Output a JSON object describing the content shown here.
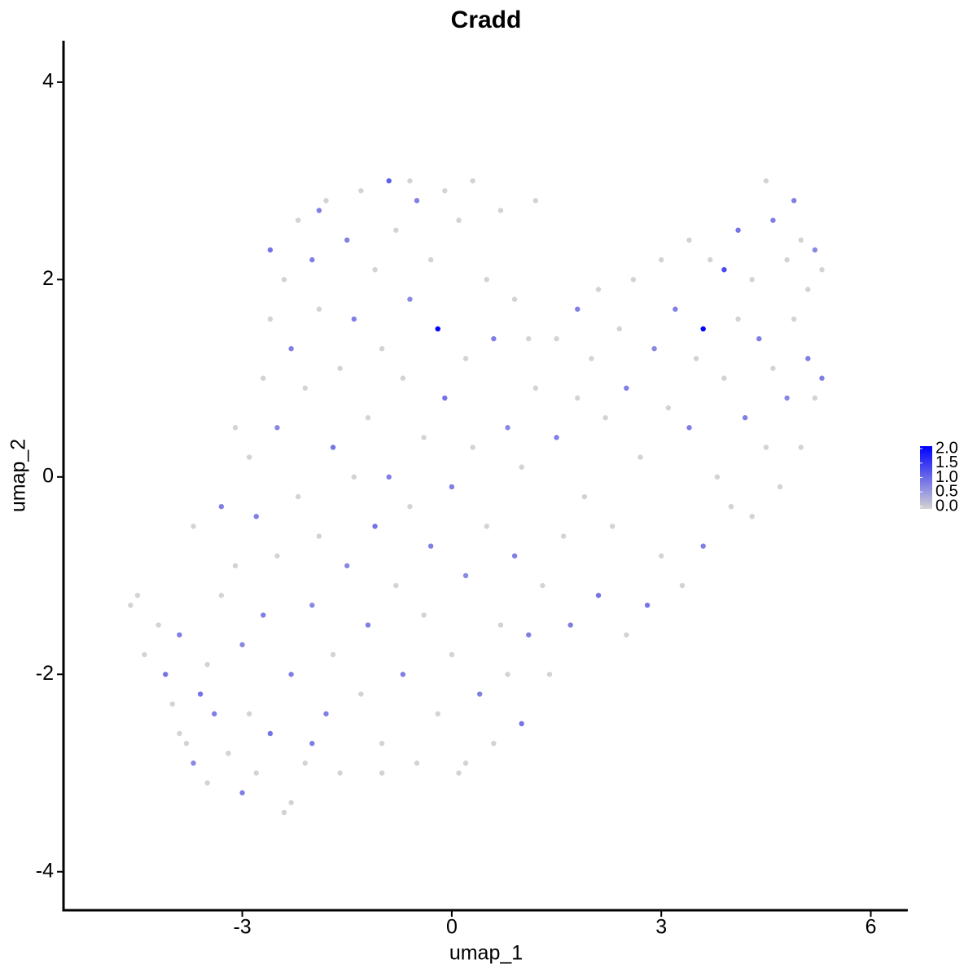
{
  "chart_data": {
    "type": "scatter",
    "title": "Cradd",
    "x_label": "umap_1",
    "y_label": "umap_2",
    "xlim": [
      -5.56,
      6.53
    ],
    "ylim": [
      -4.39,
      4.42
    ],
    "xticks": [
      -3,
      0,
      3,
      6
    ],
    "yticks": [
      -4,
      -2,
      0,
      2,
      4
    ],
    "color_low": "#d3d3d3",
    "color_high": "#0000ff",
    "clim": [
      0,
      2
    ],
    "cticks": [
      {
        "value": 0,
        "label": "0.0"
      },
      0.5,
      {
        "value": 1,
        "label": "1.0"
      },
      1.5,
      {
        "value": 2,
        "label": "2.0"
      }
    ],
    "points": [
      [
        -4.6,
        -1.3,
        0
      ],
      [
        -4.5,
        -1.2,
        0
      ],
      [
        -4.4,
        -1.8,
        0
      ],
      [
        -4.2,
        -1.5,
        0
      ],
      [
        -4.1,
        -2.0,
        0.9
      ],
      [
        -4.0,
        -2.3,
        0
      ],
      [
        -3.9,
        -1.6,
        0.8
      ],
      [
        -3.8,
        -2.7,
        0
      ],
      [
        -3.7,
        -2.9,
        0.7
      ],
      [
        -3.6,
        -2.2,
        0.9
      ],
      [
        -3.5,
        -1.9,
        0
      ],
      [
        -3.5,
        -3.1,
        0
      ],
      [
        -3.4,
        -2.4,
        0.8
      ],
      [
        -3.3,
        -1.2,
        0
      ],
      [
        -3.3,
        -0.3,
        0.8
      ],
      [
        -3.2,
        -2.8,
        0
      ],
      [
        -3.1,
        -0.9,
        0
      ],
      [
        -3.0,
        -3.2,
        0.8
      ],
      [
        -3.0,
        -1.7,
        0.7
      ],
      [
        -2.9,
        -2.4,
        0
      ],
      [
        -2.9,
        0.2,
        0
      ],
      [
        -2.8,
        -0.4,
        0.8
      ],
      [
        -2.8,
        -3.0,
        0
      ],
      [
        -2.7,
        1.0,
        0
      ],
      [
        -2.7,
        -1.4,
        0.8
      ],
      [
        -2.6,
        -2.6,
        0.9
      ],
      [
        -2.6,
        1.6,
        0
      ],
      [
        -2.5,
        -0.8,
        0
      ],
      [
        -2.5,
        0.5,
        0.7
      ],
      [
        -2.4,
        -3.4,
        0
      ],
      [
        -2.4,
        2.0,
        0
      ],
      [
        -2.3,
        -2.0,
        0.8
      ],
      [
        -2.3,
        1.3,
        0.8
      ],
      [
        -2.2,
        -0.2,
        0
      ],
      [
        -2.2,
        2.6,
        0
      ],
      [
        -2.1,
        -2.9,
        0
      ],
      [
        -2.1,
        0.9,
        0
      ],
      [
        -2.0,
        -1.3,
        0.7
      ],
      [
        -2.0,
        2.2,
        0.8
      ],
      [
        -1.9,
        -0.6,
        0
      ],
      [
        -1.9,
        1.7,
        0
      ],
      [
        -1.8,
        -2.4,
        0.8
      ],
      [
        -1.8,
        2.8,
        0
      ],
      [
        -1.7,
        0.3,
        0.9
      ],
      [
        -1.7,
        -1.8,
        0
      ],
      [
        -1.6,
        1.1,
        0
      ],
      [
        -1.6,
        -3.0,
        0
      ],
      [
        -1.5,
        2.4,
        0.8
      ],
      [
        -1.5,
        -0.9,
        0.7
      ],
      [
        -1.4,
        0.0,
        0
      ],
      [
        -1.4,
        1.6,
        0.8
      ],
      [
        -1.3,
        -2.2,
        0
      ],
      [
        -1.3,
        2.9,
        0
      ],
      [
        -1.2,
        -1.5,
        0.8
      ],
      [
        -1.2,
        0.6,
        0
      ],
      [
        -1.1,
        2.1,
        0
      ],
      [
        -1.1,
        -0.5,
        0.9
      ],
      [
        -1.0,
        1.3,
        0
      ],
      [
        -1.0,
        -2.7,
        0
      ],
      [
        -0.9,
        3.0,
        1.1
      ],
      [
        -0.9,
        0.0,
        0.8
      ],
      [
        -0.8,
        -1.1,
        0
      ],
      [
        -0.8,
        2.5,
        0
      ],
      [
        -0.7,
        -2.0,
        0.8
      ],
      [
        -0.7,
        1.0,
        0
      ],
      [
        -0.6,
        -0.3,
        0
      ],
      [
        -0.6,
        1.8,
        0.7
      ],
      [
        -0.5,
        -2.9,
        0
      ],
      [
        -0.5,
        2.8,
        0.8
      ],
      [
        -0.4,
        0.4,
        0
      ],
      [
        -0.4,
        -1.4,
        0
      ],
      [
        -0.3,
        2.2,
        0
      ],
      [
        -0.3,
        -0.7,
        0.8
      ],
      [
        -0.2,
        1.5,
        2.0
      ],
      [
        -0.2,
        -2.4,
        0
      ],
      [
        -0.1,
        0.8,
        0.9
      ],
      [
        -0.1,
        2.9,
        0
      ],
      [
        0.0,
        -1.8,
        0
      ],
      [
        0.0,
        -0.1,
        0.8
      ],
      [
        0.1,
        2.6,
        0
      ],
      [
        0.1,
        -3.0,
        0
      ],
      [
        0.2,
        1.2,
        0
      ],
      [
        0.2,
        -1.0,
        0.7
      ],
      [
        0.3,
        3.0,
        0
      ],
      [
        0.3,
        0.3,
        0
      ],
      [
        0.4,
        -2.2,
        0.8
      ],
      [
        0.5,
        2.0,
        0
      ],
      [
        0.5,
        -0.5,
        0
      ],
      [
        0.6,
        -2.7,
        0
      ],
      [
        0.6,
        1.4,
        0.8
      ],
      [
        0.7,
        2.7,
        0
      ],
      [
        0.7,
        -1.5,
        0
      ],
      [
        0.8,
        0.5,
        0.7
      ],
      [
        0.8,
        -2.0,
        0
      ],
      [
        0.9,
        1.8,
        0
      ],
      [
        0.9,
        -0.8,
        0.8
      ],
      [
        1.0,
        -2.5,
        0.9
      ],
      [
        1.0,
        0.1,
        0
      ],
      [
        1.1,
        1.4,
        0
      ],
      [
        1.1,
        -1.6,
        0.8
      ],
      [
        1.2,
        2.8,
        0
      ],
      [
        1.2,
        0.9,
        0
      ],
      [
        1.3,
        -1.1,
        0
      ],
      [
        1.4,
        -2.0,
        0
      ],
      [
        1.5,
        0.4,
        0.8
      ],
      [
        1.5,
        1.4,
        0
      ],
      [
        1.6,
        -0.6,
        0
      ],
      [
        1.7,
        -1.5,
        0.8
      ],
      [
        1.8,
        1.7,
        0.8
      ],
      [
        1.8,
        0.8,
        0
      ],
      [
        1.9,
        -0.2,
        0
      ],
      [
        2.0,
        1.2,
        0
      ],
      [
        2.1,
        -1.2,
        0.9
      ],
      [
        2.1,
        1.9,
        0
      ],
      [
        2.2,
        0.6,
        0
      ],
      [
        2.3,
        -0.5,
        0
      ],
      [
        2.4,
        1.5,
        0
      ],
      [
        2.5,
        -1.6,
        0
      ],
      [
        2.5,
        0.9,
        0.8
      ],
      [
        2.6,
        2.0,
        0
      ],
      [
        2.7,
        0.2,
        0
      ],
      [
        2.8,
        -1.3,
        0.9
      ],
      [
        2.9,
        1.3,
        0.7
      ],
      [
        3.0,
        2.2,
        0
      ],
      [
        3.0,
        -0.8,
        0
      ],
      [
        3.1,
        0.7,
        0
      ],
      [
        3.2,
        1.7,
        0.8
      ],
      [
        3.3,
        -1.1,
        0
      ],
      [
        3.4,
        2.4,
        0
      ],
      [
        3.4,
        0.5,
        0.8
      ],
      [
        3.5,
        1.2,
        0
      ],
      [
        3.6,
        1.5,
        2.0
      ],
      [
        3.6,
        -0.7,
        0.8
      ],
      [
        3.7,
        2.2,
        0
      ],
      [
        3.8,
        0.0,
        0
      ],
      [
        3.9,
        2.1,
        1.3
      ],
      [
        3.9,
        1.0,
        0
      ],
      [
        4.0,
        -0.3,
        0
      ],
      [
        4.1,
        2.5,
        0.9
      ],
      [
        4.1,
        1.6,
        0
      ],
      [
        4.2,
        0.6,
        0.8
      ],
      [
        4.3,
        -0.4,
        0
      ],
      [
        4.3,
        2.0,
        0
      ],
      [
        4.4,
        1.4,
        0.8
      ],
      [
        4.5,
        3.0,
        0
      ],
      [
        4.5,
        0.3,
        0
      ],
      [
        4.6,
        2.6,
        0.8
      ],
      [
        4.6,
        1.1,
        0
      ],
      [
        4.7,
        -0.1,
        0
      ],
      [
        4.8,
        2.2,
        0
      ],
      [
        4.8,
        0.8,
        0.7
      ],
      [
        4.9,
        2.8,
        0.8
      ],
      [
        4.9,
        1.6,
        0
      ],
      [
        5.0,
        0.3,
        0
      ],
      [
        5.0,
        2.4,
        0
      ],
      [
        5.1,
        1.2,
        0.8
      ],
      [
        5.1,
        1.9,
        0
      ],
      [
        5.2,
        0.8,
        0
      ],
      [
        5.2,
        2.3,
        0.7
      ],
      [
        5.3,
        2.1,
        0
      ],
      [
        5.3,
        1.0,
        0.8
      ],
      [
        -3.9,
        -2.6,
        0
      ],
      [
        -2.3,
        -3.3,
        0
      ],
      [
        -2.0,
        -2.7,
        0.8
      ],
      [
        -1.0,
        -3.0,
        0
      ],
      [
        0.2,
        -2.9,
        0
      ],
      [
        -3.7,
        -0.5,
        0
      ],
      [
        -3.1,
        0.5,
        0
      ],
      [
        -2.6,
        2.3,
        0.9
      ],
      [
        -1.9,
        2.7,
        0.8
      ],
      [
        -0.6,
        3.0,
        0
      ]
    ]
  }
}
